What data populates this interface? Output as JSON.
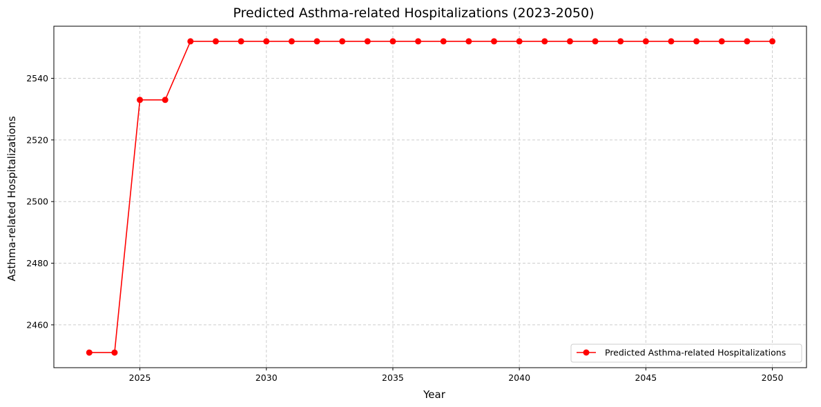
{
  "chart_data": {
    "type": "line",
    "title": "Predicted Asthma-related Hospitalizations (2023-2050)",
    "xlabel": "Year",
    "ylabel": "Asthma-related Hospitalizations",
    "x": [
      2023,
      2024,
      2025,
      2026,
      2027,
      2028,
      2029,
      2030,
      2031,
      2032,
      2033,
      2034,
      2035,
      2036,
      2037,
      2038,
      2039,
      2040,
      2041,
      2042,
      2043,
      2044,
      2045,
      2046,
      2047,
      2048,
      2049,
      2050
    ],
    "series": [
      {
        "name": "Predicted Asthma-related Hospitalizations",
        "color": "#ff0000",
        "marker": "circle",
        "values": [
          2451,
          2451,
          2533,
          2533,
          2552,
          2552,
          2552,
          2552,
          2552,
          2552,
          2552,
          2552,
          2552,
          2552,
          2552,
          2552,
          2552,
          2552,
          2552,
          2552,
          2552,
          2552,
          2552,
          2552,
          2552,
          2552,
          2552,
          2552
        ]
      }
    ],
    "xticks": [
      "2025",
      "2030",
      "2035",
      "2040",
      "2045",
      "2050"
    ],
    "yticks": [
      "2460",
      "2480",
      "2500",
      "2520",
      "2540"
    ],
    "xlim": [
      2021.6,
      2051.35
    ],
    "ylim": [
      2446.1,
      2556.9
    ],
    "grid": true,
    "grid_style": "dashed",
    "legend_position": "lower right"
  }
}
